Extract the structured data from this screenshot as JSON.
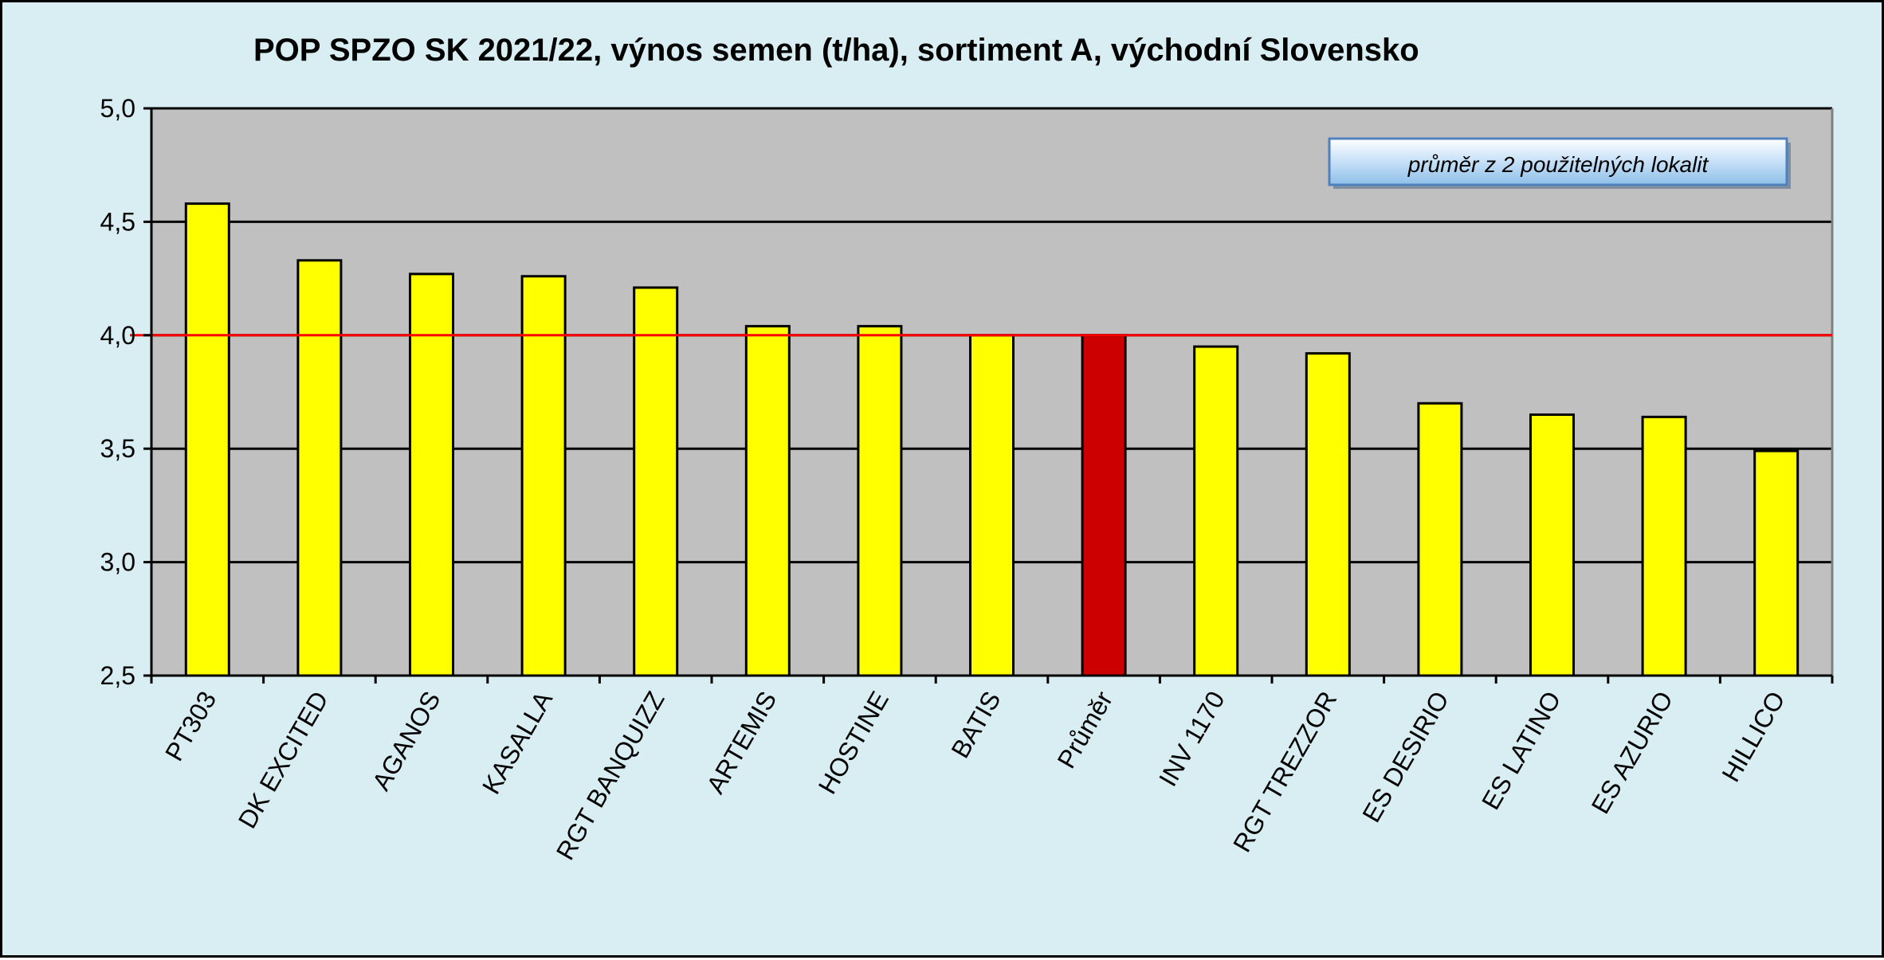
{
  "chart_data": {
    "type": "bar",
    "title": "POP SPZO SK 2021/22, výnos semen (t/ha), sortiment A, východní Slovensko",
    "xlabel": "",
    "ylabel": "",
    "ylim": [
      2.5,
      5.0
    ],
    "yticks": [
      "2,5",
      "3,0",
      "3,5",
      "4,0",
      "4,5",
      "5,0"
    ],
    "ytick_values": [
      2.5,
      3.0,
      3.5,
      4.0,
      4.5,
      5.0
    ],
    "categories": [
      "PT303",
      "DK EXCITED",
      "AGANOS",
      "KASALLA",
      "RGT BANQUIZZ",
      "ARTEMIS",
      "HOSTINE",
      "BATIS",
      "Průměr",
      "INV 1170",
      "RGT TREZZOR",
      "ES DESIRIO",
      "ES LATINO",
      "ES AZURIO",
      "HILLICO"
    ],
    "values": [
      4.58,
      4.33,
      4.27,
      4.26,
      4.21,
      4.04,
      4.04,
      4.0,
      4.0,
      3.95,
      3.92,
      3.7,
      3.65,
      3.64,
      3.49
    ],
    "highlight_category": "Průměr",
    "reference_line": 4.0,
    "grid": true,
    "annotation": "průměr z 2 použitelných lokalit",
    "colors": {
      "bar": "#ffff00",
      "highlight_bar": "#cc0000",
      "reference_line": "#ff0000",
      "plot_background": "#c0c0c0",
      "chart_background": "#d9eef2",
      "annotation_box": "#c6e0f7"
    }
  }
}
